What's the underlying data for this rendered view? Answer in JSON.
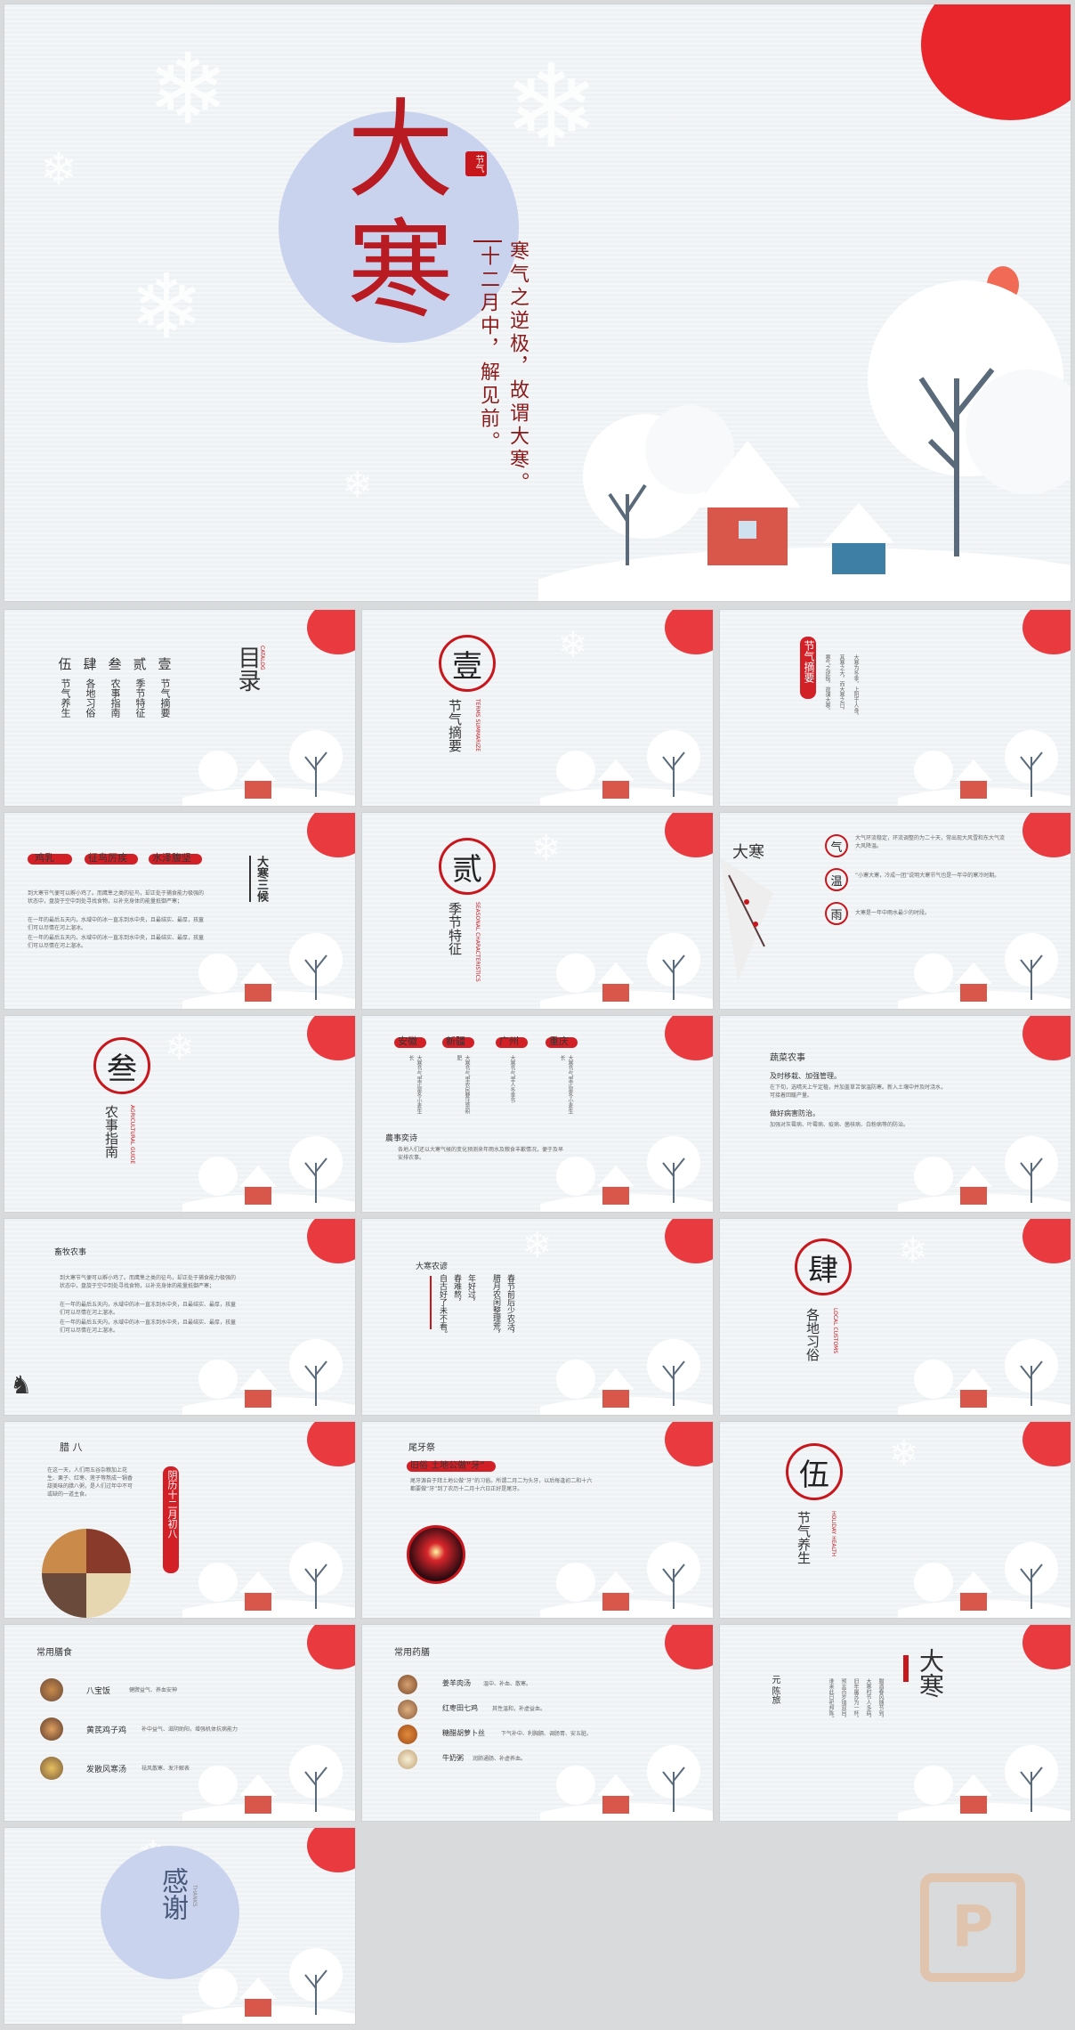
{
  "cover": {
    "title_big1": "大",
    "title_big2": "寒",
    "seal": "节气",
    "verse": "寒气之逆极，故谓大寒。",
    "date": "十二月中，解见前。"
  },
  "catalog": {
    "title": "目录",
    "title_en": "CATALOG",
    "items": [
      {
        "num": "壹",
        "label": "节气摘要"
      },
      {
        "num": "贰",
        "label": "季节特征"
      },
      {
        "num": "叁",
        "label": "农事指南"
      },
      {
        "num": "肆",
        "label": "各地习俗"
      },
      {
        "num": "伍",
        "label": "节气养生"
      }
    ]
  },
  "sections": [
    {
      "num": "壹",
      "title": "节气摘要",
      "en": "TERMS SUMMARIZE"
    },
    {
      "num": "贰",
      "title": "季节特征",
      "en": "SEASONAL CHARACTERISTICS"
    },
    {
      "num": "叁",
      "title": "农事指南",
      "en": "AGRICULTURAL GUIDE"
    },
    {
      "num": "肆",
      "title": "各地习俗",
      "en": "LOCAL CUSTOMS"
    },
    {
      "num": "伍",
      "title": "节气养生",
      "en": "HOLIDAY HEALTH"
    }
  ],
  "summary": {
    "title": "节气摘要",
    "col1": "大寒为冬季，上阳于人身，",
    "col2": "其寒之大，而大寒之日，",
    "col3": "寒气之逆极，故谓大寒。"
  },
  "three": {
    "heading": "大寒三候",
    "tags": [
      "鸡乳",
      "征鸟厉疾",
      "水泽腹坚"
    ],
    "para": [
      "到大寒节气便可以孵小鸡了。而鹰隼之类的征鸟，却正处于捕食能力极强的状态中，盘旋于空中到处寻找食物，以补充身体的能量抵御严寒；",
      "在一年的最后五天内，水域中的冰一直冻到水中央，且最结实、最厚，孩童们可以尽情在河上溜冰。",
      "在一年的最后五天内，水域中的冰一直冻到水中央，且最结实、最厚，孩童们可以尽情在河上溜冰。"
    ]
  },
  "climate": {
    "logo": "大寒",
    "items": [
      {
        "icon": "气",
        "text": "大气环流稳定，环流调整的为二十天，常出现大风雪和东大气流大风降温。"
      },
      {
        "icon": "温",
        "text": "“小寒大寒，冷成一团”说明大寒节气也是一年中的寒冷时期。"
      },
      {
        "icon": "雨",
        "text": "大寒是一年中雨水最少的时段。"
      }
    ]
  },
  "regions": {
    "tags": [
      "安徽",
      "新疆",
      "广州",
      "重庆"
    ],
    "cols": [
      "大寒节气里正是冬小麦生长",
      "大寒节气里农民要注意积肥",
      "大寒节气里人冬季节",
      "大寒节气里正是冬小麦生长"
    ],
    "box_title": "農事奕诗",
    "box_text": "各地人们还以大寒气候的变化预测来年雨水及粮食丰歉情况，便于及早安排农事。"
  },
  "veg": {
    "title": "蔬菜农事",
    "sub1": "及时移栽、加强管理。",
    "text1": "在下旬，选晴天上午定植，并加盖草苫保温防寒。新入土壤中并及时浇水，可接着回暖产量。",
    "sub2": "做好病害防治。",
    "text2": "加强对灰霉病、叶霉病、疫病、菌核病、白粉病等的防治。"
  },
  "livestock": {
    "title": "畜牧农事",
    "para": [
      "到大寒节气便可以孵小鸡了。而鹰隼之类的征鸟，却正处于捕食能力极强的状态中，盘旋于空中到处寻找食物，以补充身体的能量抵御严寒；",
      "在一年的最后五天内，水域中的冰一直冻到水中央，且最结实、最厚，孩童们可以尽情在河上溜冰。",
      "在一年的最后五天内，水域中的冰一直冻到水中央，且最结实、最厚，孩童们可以尽情在河上溜冰。"
    ]
  },
  "farm": {
    "title": "大寒农谚",
    "cols": [
      "春节前后少农活，",
      "腊月农闲整理荒，",
      "年好过，",
      "春难熬，",
      "自古好了未不看。"
    ]
  },
  "laba": {
    "title": "腊 八",
    "text": "在这一天，人们用五谷杂粮加上花生、栗子、红枣、莲子等熬成一锅香甜美味的腊八粥，是人们过年中不可或缺的一道主食。",
    "date": "阴历十二月初八"
  },
  "weiya": {
    "title": "尾牙祭",
    "sub": "旧俗 土地公做“牙”",
    "text": "尾牙源自于拜土地公做“牙”的习俗。所谓二月二为头牙，以后每逢初二和十六都要做“牙”到了农历十二月十六日正好是尾牙。"
  },
  "diet": {
    "title": "常用膳食",
    "items": [
      {
        "name": "八宝饭",
        "desc": "健脾益气、养血安神"
      },
      {
        "name": "黄芪鸡子鸡",
        "desc": "补中益气、滋阴助阳，增强机体抗病能力"
      },
      {
        "name": "发散风寒汤",
        "desc": "祛风散寒、发汗解表"
      }
    ]
  },
  "herbs": {
    "title": "常用药膳",
    "items": [
      {
        "name": "姜羊肉汤",
        "desc": "温中、补血、散寒。"
      },
      {
        "name": "红枣田七鸡",
        "desc": "其性温和，补虚益血。"
      },
      {
        "name": "糖醋胡萝卜丝",
        "desc": "下气补中、利胸膈、调肠胃、安五脏。"
      },
      {
        "name": "牛奶粥",
        "desc": "润肺通肠、补虚养血。"
      }
    ]
  },
  "poem": {
    "big": "大寒",
    "author": "元 陈旅",
    "lines": [
      "腊酒春风随节到，",
      "大寒时节人多病，",
      "旧年屠苏为一杯，",
      "预言百岁瑞双目，",
      "谁来此日祀邦陈。"
    ]
  },
  "thanks": {
    "text": "感谢",
    "en": "THANKS"
  },
  "colors": {
    "accent": "#c8161d",
    "sun": "#e8262b",
    "bg": "#eef2f5",
    "circle": "#c9d3ee"
  }
}
